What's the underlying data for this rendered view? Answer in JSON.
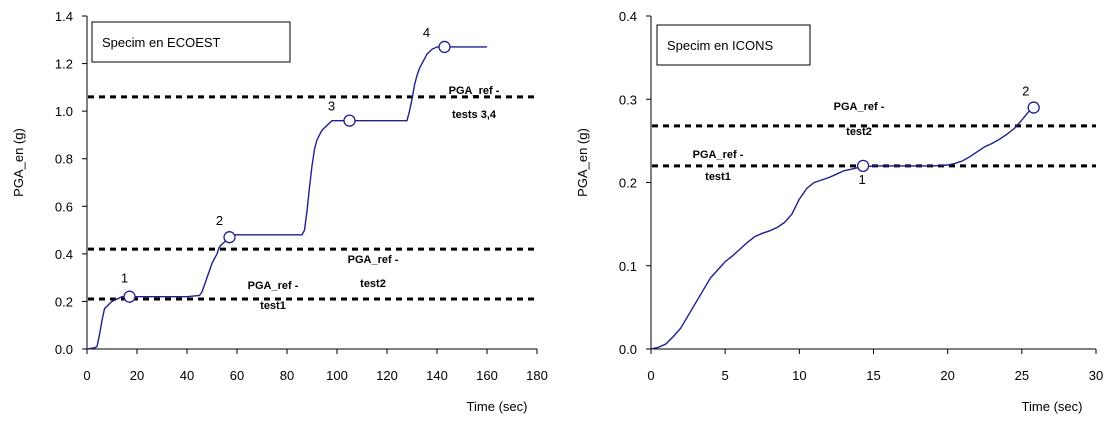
{
  "chart_data": [
    {
      "type": "line",
      "title": "",
      "specimen_label": "Specim en ECOEST",
      "xlabel": "Time (sec)",
      "ylabel": "PGA_en (g)",
      "xlim": [
        0,
        180
      ],
      "ylim": [
        0,
        1.4
      ],
      "xticks": [
        0,
        20,
        40,
        60,
        80,
        100,
        120,
        140,
        160,
        180
      ],
      "yticks": [
        "0.0",
        "0.2",
        "0.4",
        "0.6",
        "0.8",
        "1.0",
        "1.2",
        "1.4"
      ],
      "grid": false,
      "series": [
        {
          "x": [
            0,
            3,
            4,
            5,
            6,
            7,
            8,
            9,
            10,
            11,
            12,
            13,
            14,
            16,
            20,
            30,
            40,
            45,
            46,
            47,
            48,
            49,
            50,
            51,
            52,
            53,
            54,
            55,
            56,
            57,
            58,
            60,
            70,
            80,
            86,
            87,
            88,
            89,
            90,
            91,
            92,
            93,
            94,
            95,
            96,
            97,
            98,
            100,
            110,
            120,
            128,
            129,
            130,
            131,
            132,
            133,
            134,
            135,
            136,
            138,
            140,
            143,
            150,
            160
          ],
          "y": [
            0,
            0.005,
            0.01,
            0.06,
            0.12,
            0.17,
            0.18,
            0.19,
            0.2,
            0.205,
            0.21,
            0.215,
            0.22,
            0.22,
            0.22,
            0.22,
            0.22,
            0.225,
            0.24,
            0.27,
            0.3,
            0.33,
            0.36,
            0.38,
            0.4,
            0.43,
            0.44,
            0.45,
            0.46,
            0.47,
            0.48,
            0.48,
            0.48,
            0.48,
            0.48,
            0.5,
            0.58,
            0.68,
            0.77,
            0.84,
            0.88,
            0.9,
            0.92,
            0.93,
            0.94,
            0.95,
            0.96,
            0.96,
            0.96,
            0.96,
            0.96,
            1.0,
            1.05,
            1.11,
            1.15,
            1.18,
            1.2,
            1.22,
            1.24,
            1.26,
            1.27,
            1.27,
            1.27,
            1.27
          ]
        }
      ],
      "markers": [
        {
          "label": "1",
          "x": 17,
          "y": 0.22
        },
        {
          "label": "2",
          "x": 57,
          "y": 0.47
        },
        {
          "label": "3",
          "x": 105,
          "y": 0.96
        },
        {
          "label": "4",
          "x": 143,
          "y": 1.27
        }
      ],
      "reference_lines": [
        {
          "y": 0.21,
          "label": [
            "PGA_ref -",
            "test1"
          ]
        },
        {
          "y": 0.42,
          "label": [
            "PGA_ref -",
            "test2"
          ]
        },
        {
          "y": 1.06,
          "label": [
            "PGA_ref -",
            "tests 3,4"
          ]
        }
      ]
    },
    {
      "type": "line",
      "title": "",
      "specimen_label": "Specim en ICONS",
      "xlabel": "Time (sec)",
      "ylabel": "PGA_en (g)",
      "xlim": [
        0,
        30
      ],
      "ylim": [
        0,
        0.4
      ],
      "xticks": [
        0,
        5,
        10,
        15,
        20,
        25,
        30
      ],
      "yticks": [
        "0.0",
        "0.1",
        "0.2",
        "0.3",
        "0.4"
      ],
      "grid": false,
      "series": [
        {
          "x": [
            0,
            0.5,
            1,
            1.5,
            2,
            2.5,
            3,
            3.5,
            4,
            4.5,
            5,
            5.5,
            6,
            6.5,
            7,
            7.5,
            8,
            8.5,
            9,
            9.5,
            10,
            10.5,
            11,
            11.5,
            12,
            12.5,
            13,
            13.5,
            14,
            14.5,
            15,
            16,
            17,
            18,
            19,
            20,
            20.5,
            21,
            21.5,
            22,
            22.5,
            23,
            23.5,
            24,
            24.5,
            25,
            25.5,
            26
          ],
          "y": [
            0,
            0.002,
            0.006,
            0.015,
            0.025,
            0.04,
            0.055,
            0.07,
            0.085,
            0.095,
            0.105,
            0.112,
            0.12,
            0.128,
            0.135,
            0.139,
            0.142,
            0.146,
            0.152,
            0.162,
            0.18,
            0.193,
            0.2,
            0.203,
            0.206,
            0.21,
            0.214,
            0.216,
            0.218,
            0.219,
            0.22,
            0.22,
            0.22,
            0.22,
            0.22,
            0.221,
            0.223,
            0.226,
            0.231,
            0.237,
            0.243,
            0.247,
            0.252,
            0.258,
            0.265,
            0.275,
            0.286,
            0.29
          ]
        }
      ],
      "markers": [
        {
          "label": "1",
          "x": 14.3,
          "y": 0.22
        },
        {
          "label": "2",
          "x": 25.8,
          "y": 0.29
        }
      ],
      "reference_lines": [
        {
          "y": 0.22,
          "label": [
            "PGA_ref -",
            "test1"
          ]
        },
        {
          "y": 0.268,
          "label": [
            "PGA_ref -",
            "test2"
          ]
        }
      ]
    }
  ]
}
